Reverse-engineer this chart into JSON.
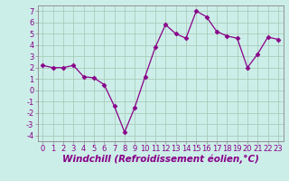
{
  "x": [
    0,
    1,
    2,
    3,
    4,
    5,
    6,
    7,
    8,
    9,
    10,
    11,
    12,
    13,
    14,
    15,
    16,
    17,
    18,
    19,
    20,
    21,
    22,
    23
  ],
  "y": [
    2.2,
    2.0,
    2.0,
    2.2,
    1.2,
    1.1,
    0.5,
    -1.4,
    -3.7,
    -1.5,
    1.2,
    3.8,
    5.8,
    5.0,
    4.6,
    7.0,
    6.5,
    5.2,
    4.8,
    4.6,
    2.0,
    3.2,
    4.7,
    4.5
  ],
  "line_color": "#880088",
  "marker": "D",
  "marker_size": 2.5,
  "bg_color": "#cceee8",
  "grid_color": "#aaccbb",
  "xlabel": "Windchill (Refroidissement éolien,°C)",
  "xlim": [
    -0.5,
    23.5
  ],
  "ylim": [
    -4.5,
    7.5
  ],
  "yticks": [
    -4,
    -3,
    -2,
    -1,
    0,
    1,
    2,
    3,
    4,
    5,
    6,
    7
  ],
  "xticks": [
    0,
    1,
    2,
    3,
    4,
    5,
    6,
    7,
    8,
    9,
    10,
    11,
    12,
    13,
    14,
    15,
    16,
    17,
    18,
    19,
    20,
    21,
    22,
    23
  ],
  "tick_label_size": 6,
  "xlabel_size": 7.5,
  "spine_color": "#888888"
}
